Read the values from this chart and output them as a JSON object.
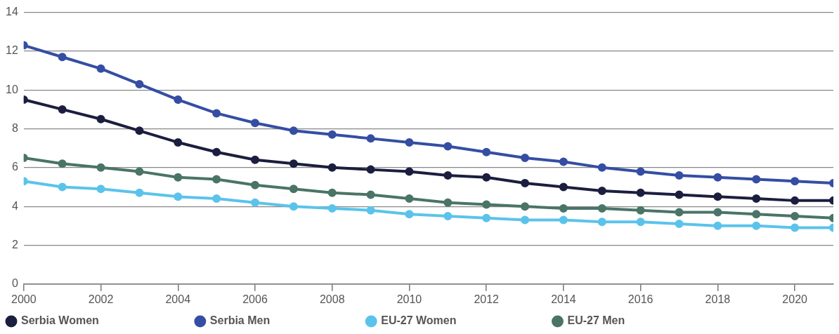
{
  "chart_data": {
    "type": "line",
    "x": [
      2000,
      2001,
      2002,
      2003,
      2004,
      2005,
      2006,
      2007,
      2008,
      2009,
      2010,
      2011,
      2012,
      2013,
      2014,
      2015,
      2016,
      2017,
      2018,
      2019,
      2020,
      2021
    ],
    "xlim": [
      2000,
      2021
    ],
    "xticks": [
      2000,
      2002,
      2004,
      2006,
      2008,
      2010,
      2012,
      2014,
      2016,
      2018,
      2020
    ],
    "ylim": [
      0,
      14
    ],
    "yticks": [
      0,
      2,
      4,
      6,
      8,
      10,
      12,
      14
    ],
    "grid": "y",
    "legend": "bottom left",
    "marker": "circle",
    "line_style": "solid",
    "series": [
      {
        "name": "Serbia Women",
        "color": "#1c1e3f",
        "values": [
          9.5,
          9.0,
          8.5,
          7.9,
          7.3,
          6.8,
          6.4,
          6.2,
          6.0,
          5.9,
          5.8,
          5.6,
          5.5,
          5.2,
          5.0,
          4.8,
          4.7,
          4.6,
          4.5,
          4.4,
          4.3,
          4.3
        ]
      },
      {
        "name": "Serbia Men",
        "color": "#354ea3",
        "values": [
          12.3,
          11.7,
          11.1,
          10.3,
          9.5,
          8.8,
          8.3,
          7.9,
          7.7,
          7.5,
          7.3,
          7.1,
          6.8,
          6.5,
          6.3,
          6.0,
          5.8,
          5.6,
          5.5,
          5.4,
          5.3,
          5.2
        ]
      },
      {
        "name": "EU-27 Women",
        "color": "#5bc3eb",
        "values": [
          5.3,
          5.0,
          4.9,
          4.7,
          4.5,
          4.4,
          4.2,
          4.0,
          3.9,
          3.8,
          3.6,
          3.5,
          3.4,
          3.3,
          3.3,
          3.2,
          3.2,
          3.1,
          3.0,
          3.0,
          2.9,
          2.9
        ]
      },
      {
        "name": "EU-27 Men",
        "color": "#4a7468",
        "values": [
          6.5,
          6.2,
          6.0,
          5.8,
          5.5,
          5.4,
          5.1,
          4.9,
          4.7,
          4.6,
          4.4,
          4.2,
          4.1,
          4.0,
          3.9,
          3.9,
          3.8,
          3.7,
          3.7,
          3.6,
          3.5,
          3.4
        ]
      }
    ]
  }
}
